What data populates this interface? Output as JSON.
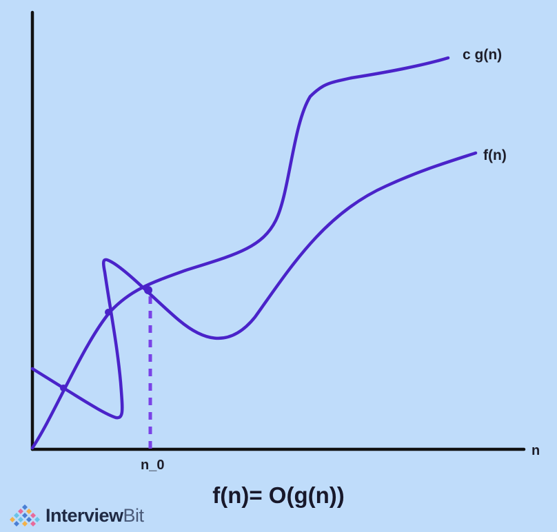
{
  "diagram": {
    "curve_labels": {
      "cg": "c g(n)",
      "f": "f(n)"
    },
    "axis": {
      "x_label": "n",
      "threshold_label": "n_0"
    },
    "caption": "f(n)= O(g(n))",
    "colors": {
      "background": "#bfdcfa",
      "curve": "#4a23c9",
      "axis": "#111111",
      "dashed": "#7a42e6"
    }
  },
  "brand": {
    "name_part1": "Interview",
    "name_part2": "Bit",
    "logo_icon": "diamond-grid-logo"
  }
}
